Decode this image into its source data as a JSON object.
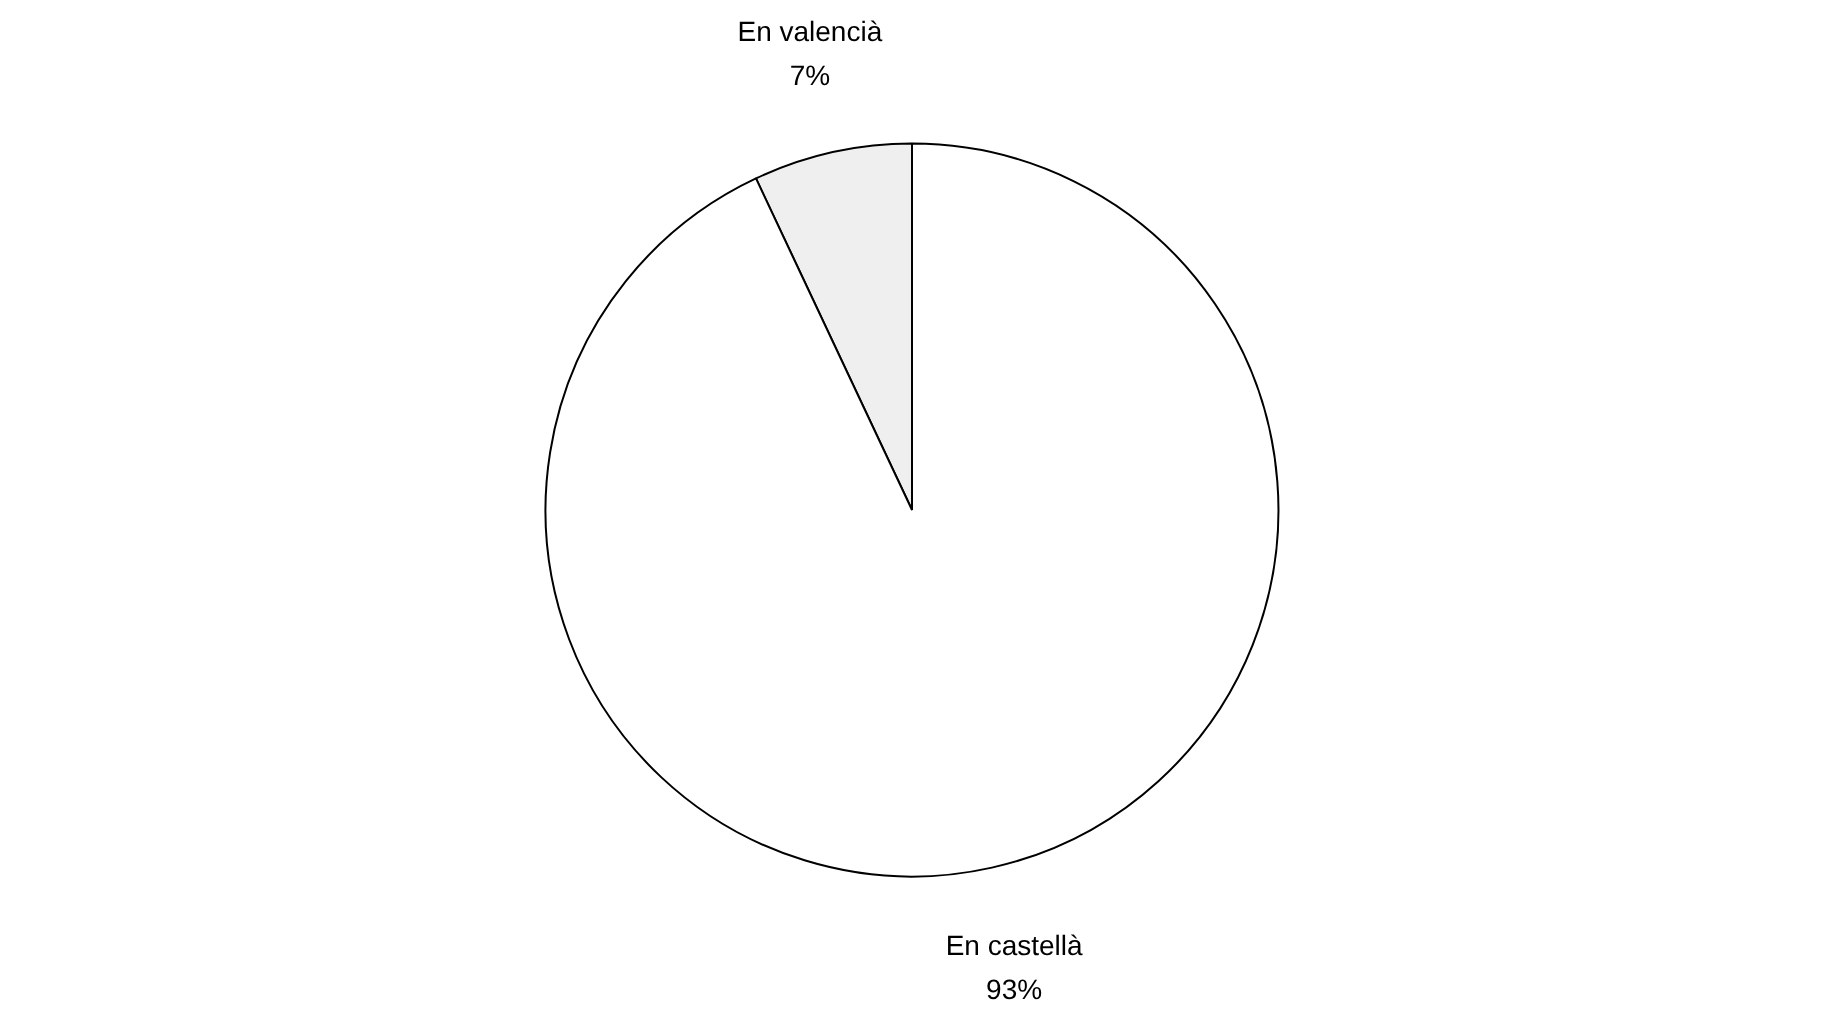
{
  "chart_data": {
    "type": "pie",
    "categories": [
      "En valencià",
      "En castellà"
    ],
    "values": [
      7,
      93
    ],
    "colors": [
      "#efefef",
      "#ffffff"
    ],
    "value_labels": [
      "7%",
      "93%"
    ]
  }
}
